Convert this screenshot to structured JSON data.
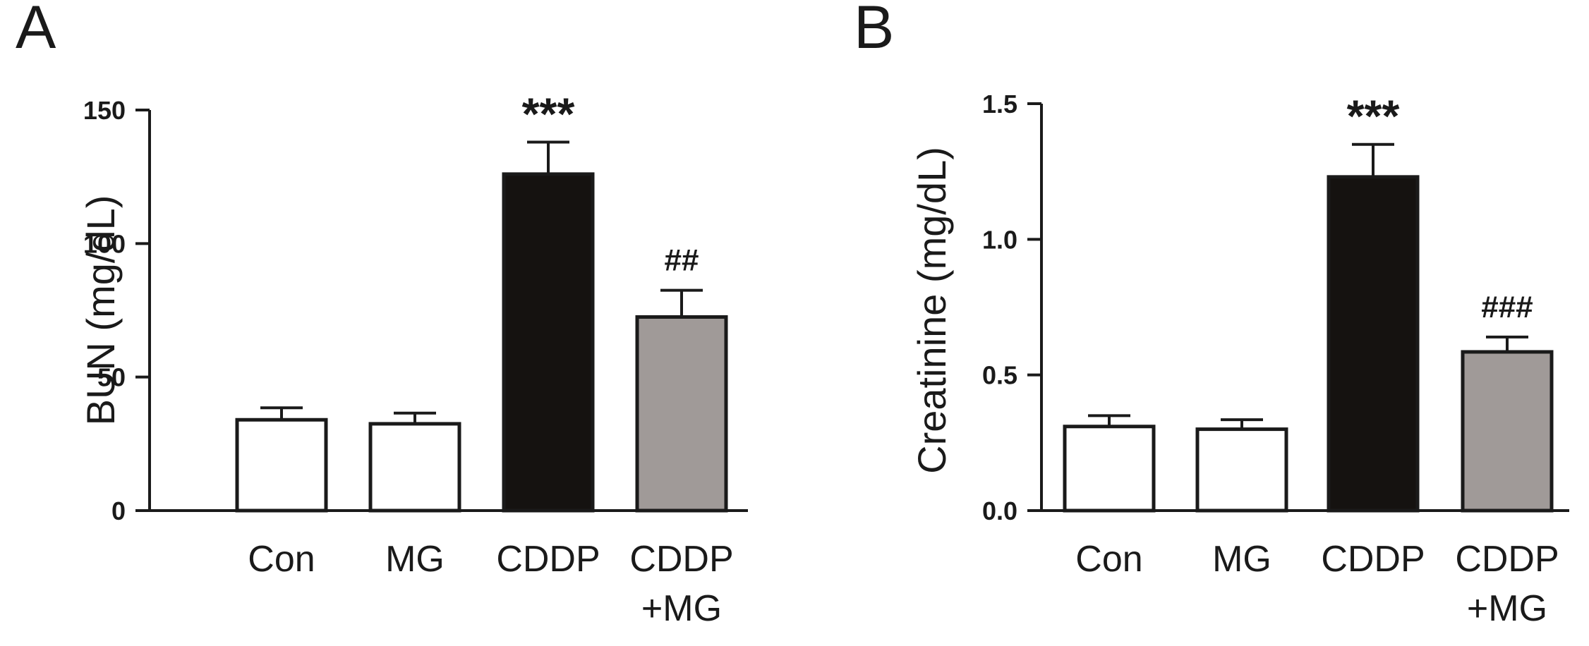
{
  "chart_data": [
    {
      "type": "bar",
      "panel": "A",
      "title": "",
      "xlabel": "",
      "ylabel": "BUN (mg/dL)",
      "ylim": [
        0,
        150
      ],
      "yticks": [
        0,
        50,
        100,
        150
      ],
      "ytick_labels": [
        "0",
        "50",
        "100",
        "150"
      ],
      "categories": [
        {
          "line1": "Con",
          "line2": ""
        },
        {
          "line1": "MG",
          "line2": ""
        },
        {
          "line1": "CDDP",
          "line2": ""
        },
        {
          "line1": "CDDP",
          "line2": "+MG"
        }
      ],
      "values": [
        34,
        32.5,
        126,
        72.5
      ],
      "errors": [
        4.5,
        4,
        12,
        10
      ],
      "fill_colors": [
        "#ffffff",
        "#ffffff",
        "#151210",
        "#a09a98"
      ],
      "annotations": [
        "",
        "",
        "***",
        "##"
      ]
    },
    {
      "type": "bar",
      "panel": "B",
      "title": "",
      "xlabel": "",
      "ylabel": "Creatinine (mg/dL)",
      "ylim": [
        0,
        1.5
      ],
      "yticks": [
        0,
        0.5,
        1.0,
        1.5
      ],
      "ytick_labels": [
        "0.0",
        "0.5",
        "1.0",
        "1.5"
      ],
      "categories": [
        {
          "line1": "Con",
          "line2": ""
        },
        {
          "line1": "MG",
          "line2": ""
        },
        {
          "line1": "CDDP",
          "line2": ""
        },
        {
          "line1": "CDDP",
          "line2": "+MG"
        }
      ],
      "values": [
        0.31,
        0.3,
        1.23,
        0.585
      ],
      "errors": [
        0.04,
        0.035,
        0.12,
        0.055
      ],
      "fill_colors": [
        "#ffffff",
        "#ffffff",
        "#151210",
        "#a09a98"
      ],
      "annotations": [
        "",
        "",
        "***",
        "###"
      ]
    }
  ]
}
